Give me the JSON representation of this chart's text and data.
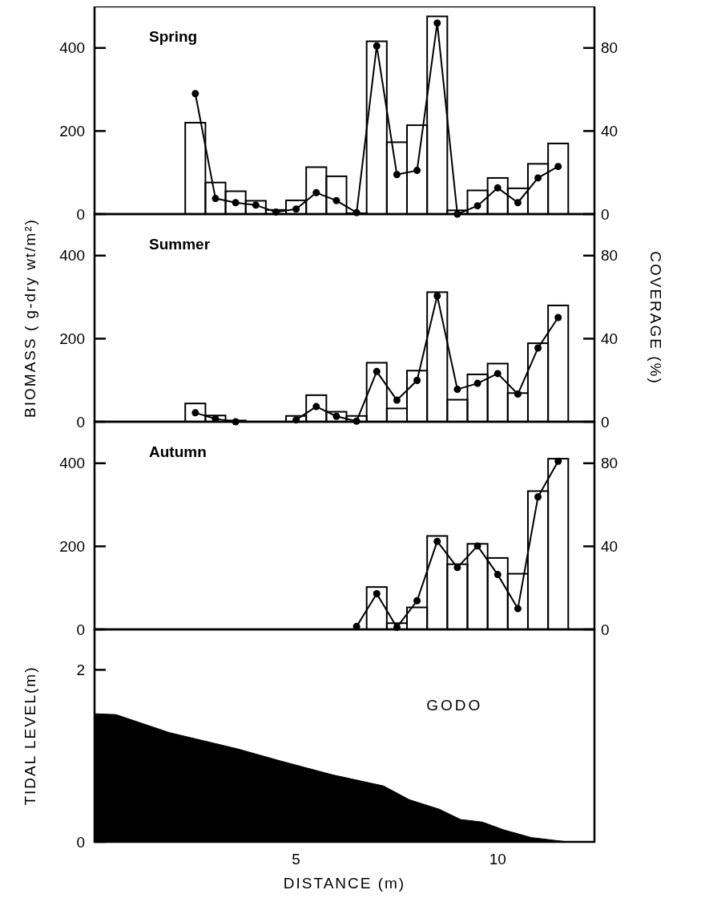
{
  "chart_data": [
    {
      "type": "bar",
      "title": "Spring",
      "x": [
        2.5,
        3,
        3.5,
        4,
        4.5,
        5,
        5.5,
        6,
        6.5,
        7,
        7.5,
        8,
        8.5,
        9,
        9.5,
        10,
        10.5,
        11,
        11.5
      ],
      "xlim": [
        0,
        12.4
      ],
      "ylim": [
        0,
        500
      ],
      "yticks": [
        0,
        200,
        400
      ],
      "y2lim": [
        0,
        100
      ],
      "y2ticks": [
        0,
        40,
        80
      ],
      "tick_labels": "y",
      "marker": "circle",
      "series": [
        {
          "color": "#000000",
          "values": [
            220,
            76,
            55,
            32,
            10,
            33,
            113,
            91,
            2,
            416,
            173,
            214,
            476,
            9,
            57,
            87,
            62,
            121,
            170
          ]
        },
        {
          "type": "line",
          "axis": "y2",
          "color": "#000000",
          "values": [
            58,
            7.5,
            5.5,
            4.3,
            1,
            2.4,
            10.3,
            6.5,
            0.7,
            81,
            19,
            21,
            92,
            0,
            4,
            12.6,
            5.5,
            17.4,
            22.9
          ]
        }
      ]
    },
    {
      "type": "bar",
      "title": "Summer",
      "ylabel": "BIOMASS ( g-dry wt/m²)",
      "y2label": "COVERAGE (%)",
      "x": [
        2.5,
        3,
        3.5,
        4,
        4.5,
        5,
        5.5,
        6,
        6.5,
        7,
        7.5,
        8,
        8.5,
        9,
        9.5,
        10,
        10.5,
        11,
        11.5
      ],
      "xlim": [
        0,
        12.4
      ],
      "ylim": [
        0,
        500
      ],
      "yticks": [
        0,
        200,
        400
      ],
      "y2lim": [
        0,
        100
      ],
      "y2ticks": [
        0,
        40,
        80
      ],
      "tick_labels": "y",
      "marker": "circle",
      "series": [
        {
          "color": "#000000",
          "values": [
            44,
            15,
            3,
            null,
            null,
            14,
            64,
            24,
            14,
            142,
            32,
            123,
            312,
            53,
            114,
            140,
            69,
            189,
            280
          ]
        },
        {
          "type": "line",
          "axis": "y2",
          "color": "#000000",
          "values": [
            4.3,
            1.4,
            0,
            null,
            null,
            0.9,
            7.3,
            2.6,
            0.3,
            24.2,
            10.4,
            19.9,
            60.6,
            15.6,
            18.5,
            23.2,
            13.3,
            35.5,
            50.2
          ]
        }
      ]
    },
    {
      "type": "bar",
      "title": "Autumn",
      "xlim": [
        0,
        12.4
      ],
      "ylim": [
        0,
        500
      ],
      "yticks": [
        0,
        200,
        400
      ],
      "y2lim": [
        0,
        100
      ],
      "y2ticks": [
        0,
        40,
        80
      ],
      "tick_labels": "y",
      "marker": "circle",
      "series": [
        {
          "color": "#000000",
          "x": [
            7,
            7.5,
            8,
            8.5,
            9,
            9.5,
            10,
            10.5,
            11,
            11.5
          ],
          "values": [
            102,
            15,
            53,
            225,
            157,
            206,
            172,
            134,
            333,
            411
          ]
        },
        {
          "type": "line",
          "axis": "y2",
          "color": "#000000",
          "x": [
            6.5,
            7,
            7.5,
            8,
            8.5,
            9,
            9.5,
            10,
            10.5,
            11,
            11.5
          ],
          "values": [
            1.4,
            17.2,
            1,
            13.8,
            42.4,
            29.8,
            40.2,
            26.4,
            10,
            63.8,
            81
          ]
        }
      ]
    },
    {
      "type": "area",
      "xlabel": "DISTANCE (m)",
      "ylabel": "TIDAL LEVEL(m)",
      "annotations": [
        "GODO"
      ],
      "xlim": [
        0,
        12.4
      ],
      "xticks": [
        5,
        10
      ],
      "ylim": [
        0,
        2.47
      ],
      "yticks": [
        0,
        2
      ],
      "x": [
        0,
        0.53,
        1.86,
        3.56,
        4.62,
        5.9,
        7.17,
        7.81,
        8.55,
        9.08,
        9.62,
        10.15,
        10.84,
        11.74
      ],
      "series": [
        {
          "color": "#000000",
          "values": [
            1.49,
            1.48,
            1.27,
            1.08,
            0.94,
            0.78,
            0.65,
            0.49,
            0.38,
            0.26,
            0.23,
            0.14,
            0.05,
            0
          ]
        }
      ]
    }
  ]
}
